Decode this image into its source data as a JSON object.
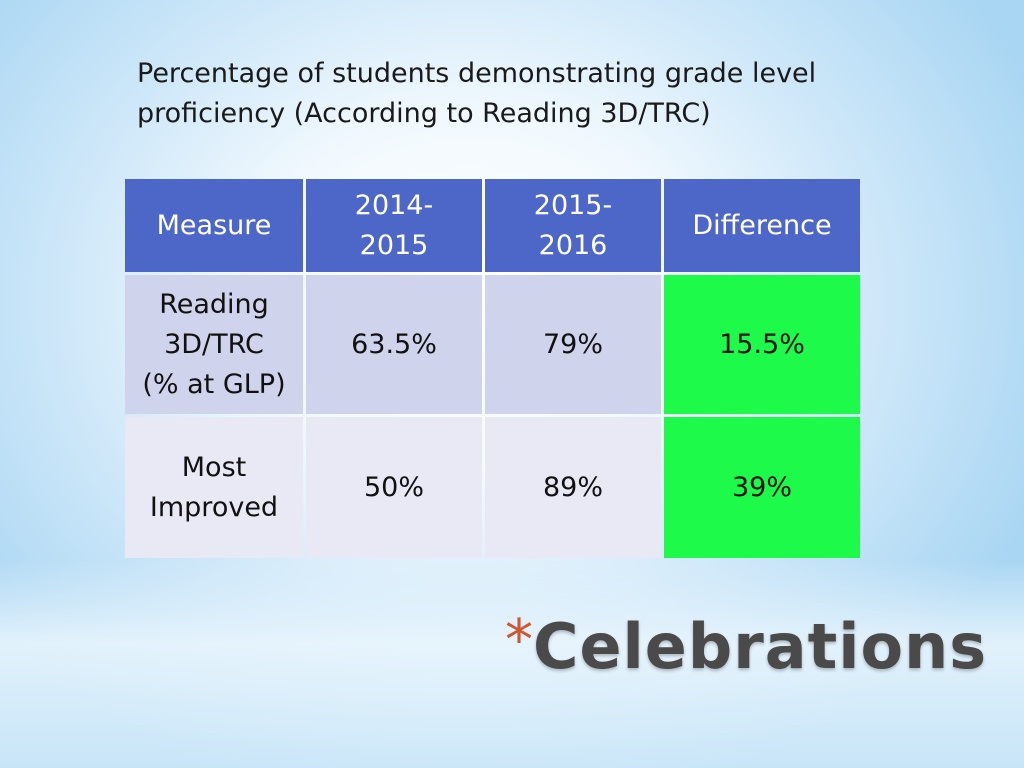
{
  "subtitle": "Percentage of students demonstrating grade level proficiency (According to Reading 3D/TRC)",
  "table": {
    "headers": {
      "measure": "Measure",
      "year1_line1": "2014-",
      "year1_line2": "2015",
      "year2_line1": "2015-",
      "year2_line2": "2016",
      "difference": "Difference"
    },
    "rows": [
      {
        "measure_line1": "Reading",
        "measure_line2": "3D/TRC",
        "measure_line3": "(% at GLP)",
        "year1": "63.5%",
        "year2": "79%",
        "difference": "15.5%"
      },
      {
        "measure_line1": "Most",
        "measure_line2": "Improved",
        "year1": "50%",
        "year2": "89%",
        "difference": "39%"
      }
    ]
  },
  "title": {
    "bullet": "*",
    "text": "Celebrations"
  },
  "colors": {
    "header_bg": "#4d67c8",
    "row1_bg": "#d0d3ec",
    "row2_bg": "#e9e9f5",
    "difference_bg": "#1dfa4a",
    "bullet": "#d0562f",
    "title": "#4a4a4a"
  }
}
